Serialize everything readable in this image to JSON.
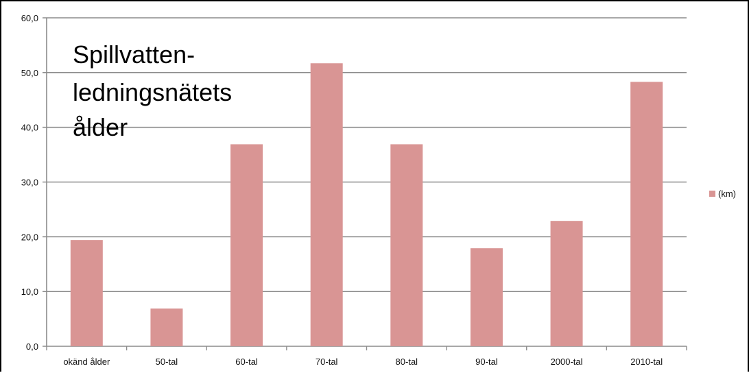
{
  "chart_data": {
    "type": "bar",
    "title_lines": [
      "Spillvatten-",
      "ledningsnätets",
      "ålder"
    ],
    "categories": [
      "okänd ålder",
      "50-tal",
      "60-tal",
      "70-tal",
      "80-tal",
      "90-tal",
      "2000-tal",
      "2010-tal"
    ],
    "series": [
      {
        "name": "(km)",
        "values": [
          19.4,
          6.9,
          36.9,
          51.7,
          36.9,
          17.9,
          22.9,
          48.3
        ]
      }
    ],
    "ylim": [
      0,
      60
    ],
    "yticks": [
      "0,0",
      "10,0",
      "20,0",
      "30,0",
      "40,0",
      "50,0",
      "60,0"
    ],
    "grid": true,
    "legend_position": "right",
    "colors": {
      "bar": "#d99594",
      "grid": "#8c8c8c",
      "axis": "#8c8c8c"
    }
  }
}
